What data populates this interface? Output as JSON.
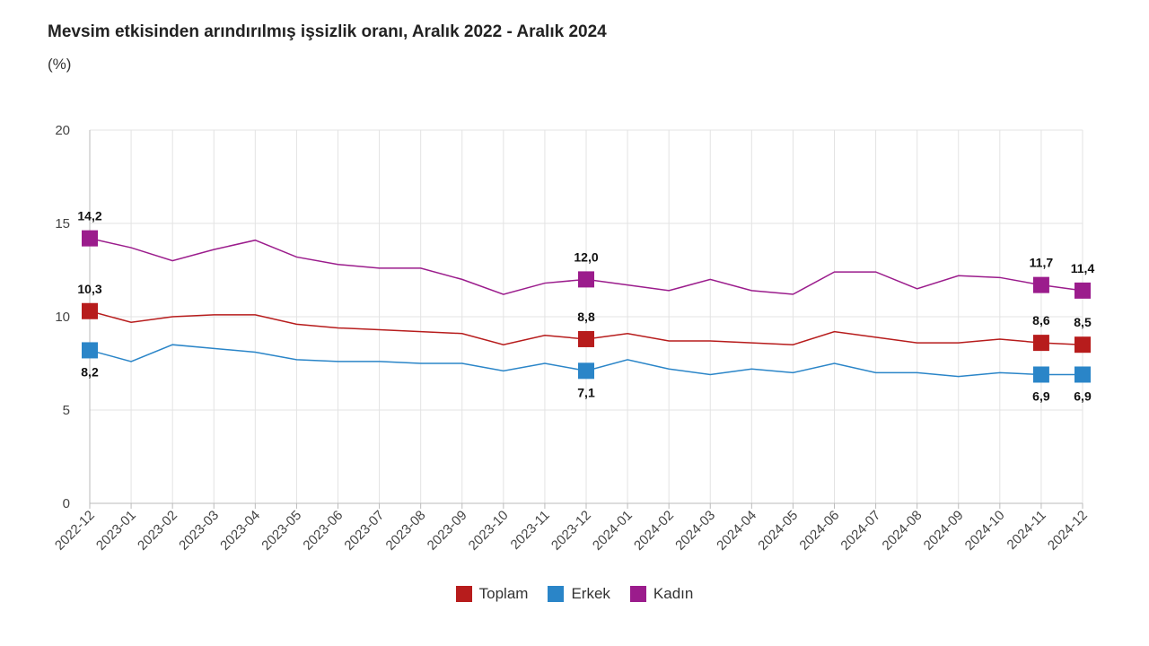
{
  "chart_data": {
    "type": "line",
    "title": "Mevsim etkisinden arındırılmış işsizlik oranı, Aralık 2022 - Aralık 2024",
    "subtitle": "(%)",
    "xlabel": "",
    "ylabel": "",
    "ylim": [
      0,
      20
    ],
    "yticks": [
      "0",
      "5",
      "10",
      "15",
      "20"
    ],
    "grid": true,
    "legend_position": "bottom-center",
    "categories": [
      "2022-12",
      "2023-01",
      "2023-02",
      "2023-03",
      "2023-04",
      "2023-05",
      "2023-06",
      "2023-07",
      "2023-08",
      "2023-09",
      "2023-10",
      "2023-11",
      "2023-12",
      "2024-01",
      "2024-02",
      "2024-03",
      "2024-04",
      "2024-05",
      "2024-06",
      "2024-07",
      "2024-08",
      "2024-09",
      "2024-10",
      "2024-11",
      "2024-12"
    ],
    "series": [
      {
        "name": "Toplam",
        "color": "#b71c1c",
        "values": [
          10.3,
          9.7,
          10.0,
          10.1,
          10.1,
          9.6,
          9.4,
          9.3,
          9.2,
          9.1,
          8.5,
          9.0,
          8.8,
          9.1,
          8.7,
          8.7,
          8.6,
          8.5,
          9.2,
          8.9,
          8.6,
          8.6,
          8.8,
          8.6,
          8.5
        ],
        "markers": [
          0,
          12,
          23,
          24
        ],
        "marker_labels": [
          "10,3",
          "8,8",
          "8,6",
          "8,5"
        ],
        "label_position": "above"
      },
      {
        "name": "Erkek",
        "color": "#2a85c8",
        "values": [
          8.2,
          7.6,
          8.5,
          8.3,
          8.1,
          7.7,
          7.6,
          7.6,
          7.5,
          7.5,
          7.1,
          7.5,
          7.1,
          7.7,
          7.2,
          6.9,
          7.2,
          7.0,
          7.5,
          7.0,
          7.0,
          6.8,
          7.0,
          6.9,
          6.9
        ],
        "markers": [
          0,
          12,
          23,
          24
        ],
        "marker_labels": [
          "8,2",
          "7,1",
          "6,9",
          "6,9"
        ],
        "label_position": "below"
      },
      {
        "name": "Kadın",
        "color": "#9b1c8c",
        "values": [
          14.2,
          13.7,
          13.0,
          13.6,
          14.1,
          13.2,
          12.8,
          12.6,
          12.6,
          12.0,
          11.2,
          11.8,
          12.0,
          11.7,
          11.4,
          12.0,
          11.4,
          11.2,
          12.4,
          12.4,
          11.5,
          12.2,
          12.1,
          11.7,
          11.4
        ],
        "markers": [
          0,
          12,
          23,
          24
        ],
        "marker_labels": [
          "14,2",
          "12,0",
          "11,7",
          "11,4"
        ],
        "label_position": "above"
      }
    ]
  }
}
